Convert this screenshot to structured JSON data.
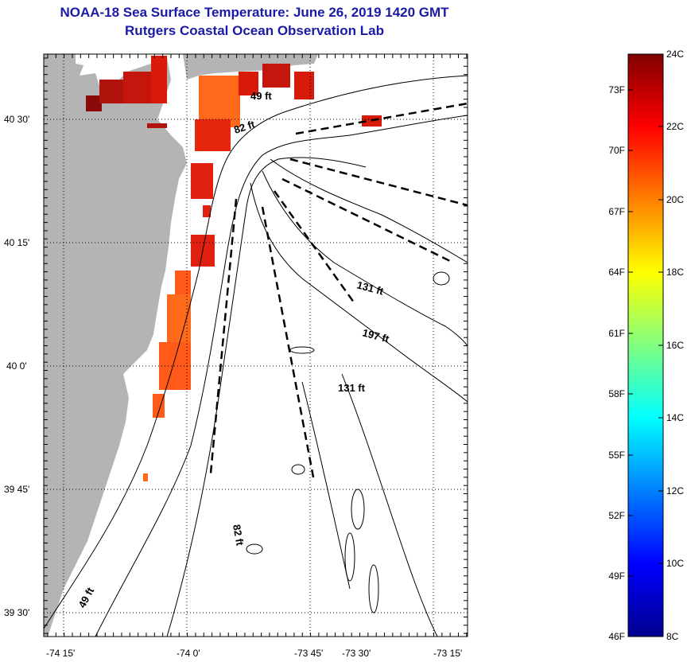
{
  "header": {
    "title": "NOAA-18 Sea Surface Temperature:  June 26, 2019 1420 GMT",
    "subtitle": "Rutgers Coastal Ocean Observation Lab"
  },
  "map": {
    "lon_ticks": [
      "-74 15'",
      "-74 0'",
      "-73 45'",
      "-73 30'",
      "-73 15'"
    ],
    "lat_ticks": [
      "40 30'",
      "40 15'",
      "40 0'",
      "39 45'",
      "39 30'"
    ],
    "depth_labels": [
      "49 ft",
      "82 ft",
      "131 ft",
      "197 ft",
      "131 ft",
      "82 ft",
      "49 ft"
    ],
    "colors": {
      "land": "#b4b4b4",
      "sst_hot": "#d81a0a",
      "sst_warm": "#ff6a1a",
      "sst_dark": "#8a0a0a"
    }
  },
  "colorbar": {
    "fahrenheit": [
      "73F",
      "70F",
      "67F",
      "64F",
      "61F",
      "58F",
      "55F",
      "52F",
      "49F",
      "46F"
    ],
    "celsius": [
      "24C",
      "22C",
      "20C",
      "18C",
      "16C",
      "14C",
      "12C",
      "10C",
      "8C"
    ],
    "range_c": [
      8,
      24
    ]
  }
}
